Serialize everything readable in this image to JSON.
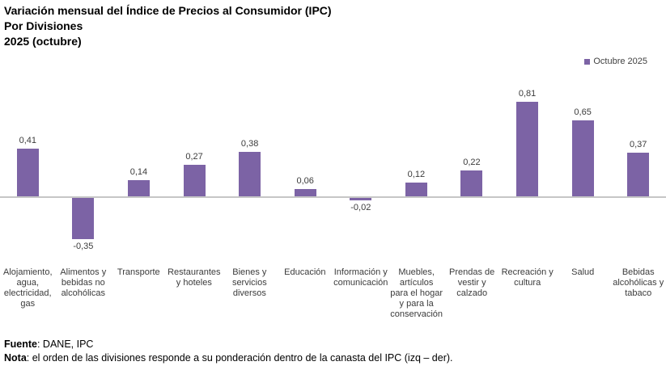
{
  "title": {
    "line1": "Variación mensual del Índice de Precios al Consumidor (IPC)",
    "line2": "Por Divisiones",
    "line3": "2025 (octubre)"
  },
  "legend": {
    "label": "Octubre 2025",
    "color": "#7C63A5"
  },
  "chart_data": {
    "type": "bar",
    "title": "Variación mensual del Índice de Precios al Consumidor (IPC) Por Divisiones 2025 (octubre)",
    "categories": [
      "Alojamiento, agua, electricidad, gas",
      "Alimentos y bebidas no alcohólicas",
      "Transporte",
      "Restaurantes y hoteles",
      "Bienes y servicios diversos",
      "Educación",
      "Información y comunicación",
      "Muebles, artículos para el hogar y para la conservación",
      "Prendas de vestir y calzado",
      "Recreación y cultura",
      "Salud",
      "Bebidas alcohólicas y tabaco"
    ],
    "series": [
      {
        "name": "Octubre 2025",
        "values": [
          0.41,
          -0.35,
          0.14,
          0.27,
          0.38,
          0.06,
          -0.02,
          0.12,
          0.22,
          0.81,
          0.65,
          0.37
        ]
      }
    ],
    "value_labels": [
      "0,41",
      "-0,35",
      "0,14",
      "0,27",
      "0,38",
      "0,06",
      "-0,02",
      "0,12",
      "0,22",
      "0,81",
      "0,65",
      "0,37"
    ],
    "bar_color": "#7C63A5",
    "baseline_color": "#C6C6C6",
    "xlabel": "",
    "ylabel": "",
    "ylim": [
      -0.5,
      1.0
    ],
    "grid": false,
    "legend_position": "top-right"
  },
  "footer": {
    "source_label": "Fuente",
    "source_text": ": DANE, IPC",
    "note_label": "Nota",
    "note_text": ": el orden de las divisiones responde a su ponderación dentro de la canasta del IPC (izq – der)."
  }
}
